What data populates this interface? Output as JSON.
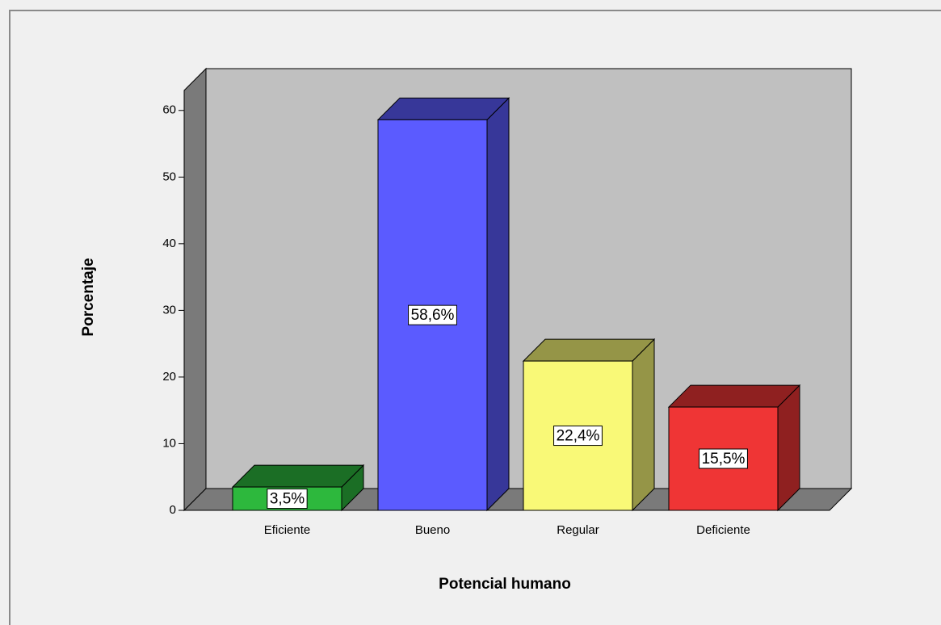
{
  "chart_data": {
    "type": "bar3d",
    "x_label": "Potencial humano",
    "y_label": "Porcentaje",
    "categories": [
      "Eficiente",
      "Bueno",
      "Regular",
      "Deficiente"
    ],
    "values": [
      3.5,
      58.6,
      22.4,
      15.5
    ],
    "value_labels": [
      "3,5%",
      "58,6%",
      "22,4%",
      "15,5%"
    ],
    "colors": [
      "#2db83d",
      "#5b5bff",
      "#f9f977",
      "#ef3535"
    ],
    "ylim": [
      0,
      63
    ],
    "yticks": [
      0,
      10,
      20,
      30,
      40,
      50,
      60
    ]
  }
}
